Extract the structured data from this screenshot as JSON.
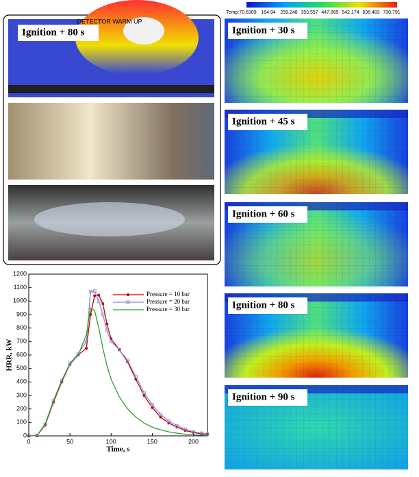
{
  "photos": {
    "overlay_text": "DETECTOR WARM UP",
    "label": "Ignition + 80 s"
  },
  "colorbar": {
    "label": "Temp:",
    "ticks": [
      70.6309,
      164.94,
      259.248,
      353.557,
      447.865,
      542.174,
      636.483,
      730.791
    ]
  },
  "panels": [
    {
      "label": "Ignition + 30 s"
    },
    {
      "label": "Ignition + 45 s"
    },
    {
      "label": "Ignition + 60 s"
    },
    {
      "label": "Ignition + 80 s"
    },
    {
      "label": "Ignition + 90 s"
    }
  ],
  "chart_data": {
    "type": "line",
    "x_label": "Time, s",
    "y_label": "HRR, kW",
    "x": [
      0,
      10,
      20,
      30,
      40,
      50,
      60,
      70,
      75,
      80,
      85,
      90,
      95,
      100,
      110,
      120,
      130,
      140,
      150,
      160,
      170,
      180,
      190,
      200,
      210,
      217
    ],
    "series": [
      {
        "name": "Pressure = 10 bar",
        "color": "#c00000",
        "marker": "circle",
        "values": [
          0,
          2,
          80,
          250,
          400,
          530,
          600,
          650,
          900,
          1040,
          1045,
          980,
          830,
          720,
          640,
          550,
          420,
          300,
          210,
          140,
          95,
          65,
          40,
          25,
          15,
          10
        ]
      },
      {
        "name": "Pressure = 20 bar",
        "color": "#8a8ad0",
        "marker": "square",
        "values": [
          0,
          2,
          85,
          260,
          410,
          540,
          610,
          700,
          1070,
          1075,
          1000,
          900,
          780,
          700,
          640,
          560,
          440,
          320,
          230,
          160,
          110,
          75,
          50,
          30,
          20,
          15
        ]
      },
      {
        "name": "Pressure = 30 bar",
        "color": "#2ca02c",
        "marker": "none",
        "values": [
          0,
          2,
          90,
          260,
          410,
          530,
          600,
          750,
          950,
          930,
          800,
          650,
          520,
          420,
          290,
          200,
          140,
          95,
          65,
          45,
          30,
          20,
          12,
          8,
          5,
          3
        ]
      }
    ],
    "xlim": [
      0,
      217
    ],
    "ylim": [
      0,
      1200
    ],
    "xticks": [
      0,
      50,
      100,
      150,
      200
    ],
    "yticks": [
      0,
      100,
      200,
      300,
      400,
      500,
      600,
      700,
      800,
      900,
      1000,
      1100,
      1200
    ]
  }
}
